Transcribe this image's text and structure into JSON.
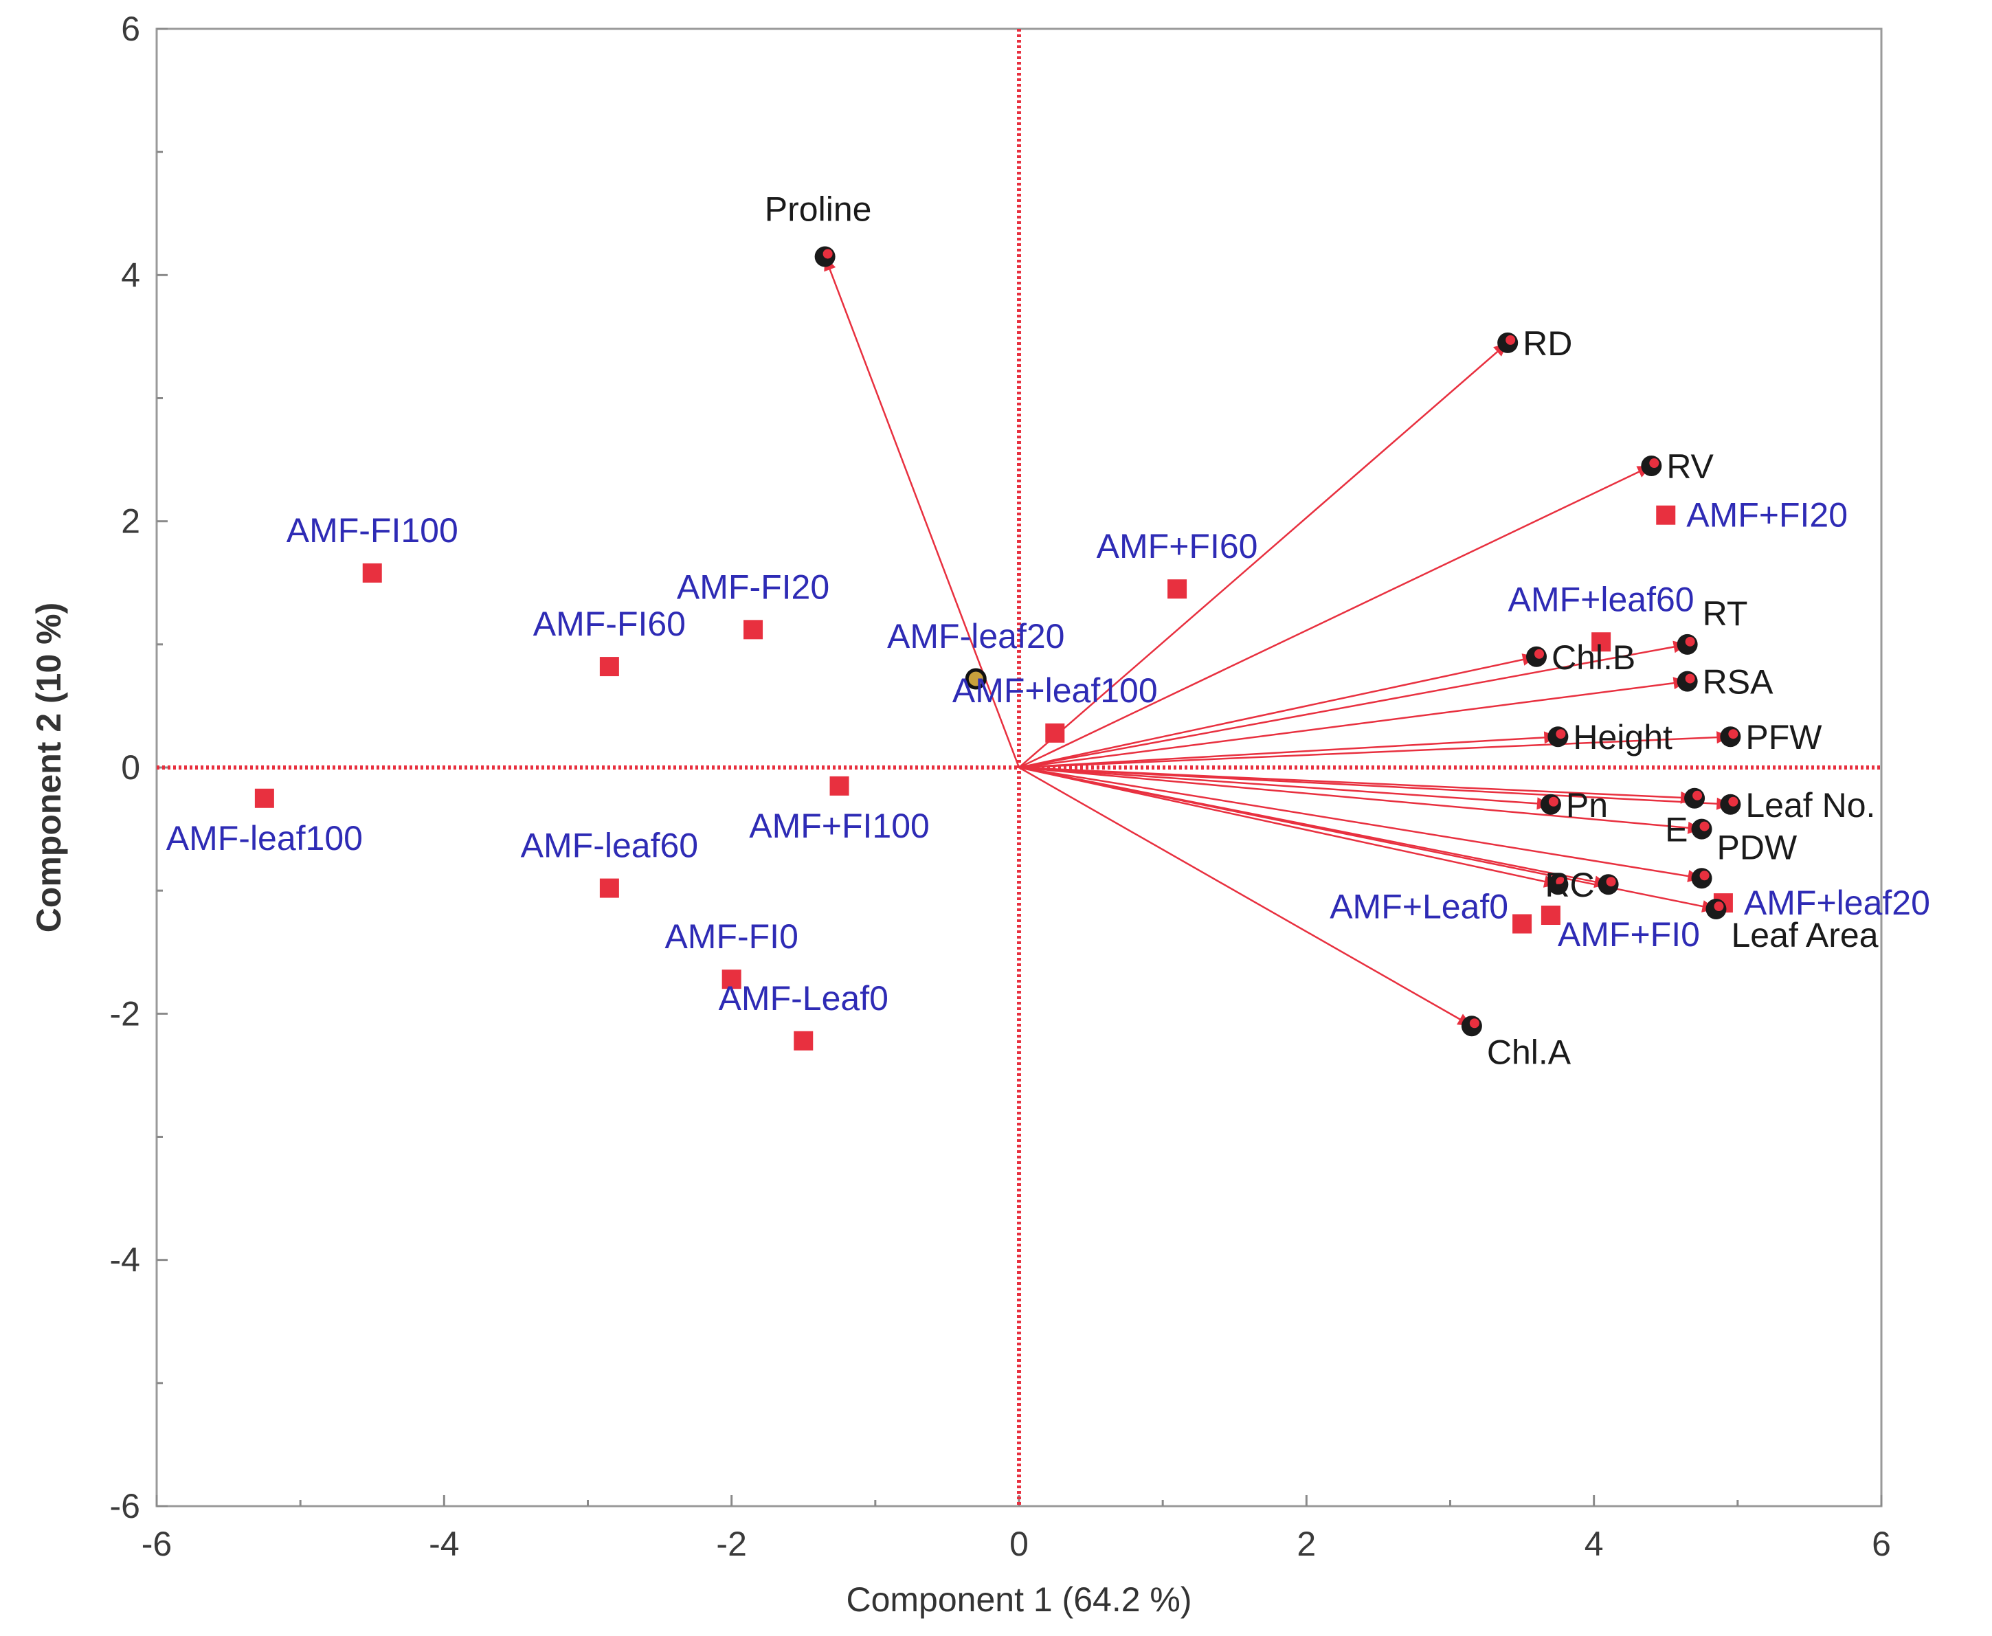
{
  "chart_data": {
    "type": "scatter",
    "subtype": "pca-biplot",
    "title": "",
    "xlabel": "Component 1  (64.2 %)",
    "ylabel": "Component 2  (10 %)",
    "xlim": [
      -6,
      6
    ],
    "ylim": [
      -6,
      6
    ],
    "xticks": [
      "-6",
      "-4",
      "-2",
      "0",
      "2",
      "4",
      "6"
    ],
    "yticks": [
      "-6",
      "-4",
      "-2",
      "0",
      "2",
      "4",
      "6"
    ],
    "grid": false,
    "colors": {
      "accent": "#e8303f",
      "marker_edge": "#111111",
      "obs_label": "#2e2bb5",
      "var_label": "#1a1a1a"
    },
    "loadings": [
      {
        "name": "Proline",
        "x": -1.35,
        "y": 4.15,
        "label_pos": "above"
      },
      {
        "name": "RD",
        "x": 3.4,
        "y": 3.45,
        "label_pos": "right"
      },
      {
        "name": "RV",
        "x": 4.4,
        "y": 2.45,
        "label_pos": "right"
      },
      {
        "name": "RT",
        "x": 4.65,
        "y": 1.0,
        "label_pos": "upper-right"
      },
      {
        "name": "Chl.B",
        "x": 3.6,
        "y": 0.9,
        "label_pos": "right"
      },
      {
        "name": "RSA",
        "x": 4.65,
        "y": 0.7,
        "label_pos": "right"
      },
      {
        "name": "Height",
        "x": 3.75,
        "y": 0.25,
        "label_pos": "right"
      },
      {
        "name": "PFW",
        "x": 4.95,
        "y": 0.25,
        "label_pos": "right"
      },
      {
        "name": "Leaf No.",
        "x": 4.95,
        "y": -0.3,
        "label_pos": "right"
      },
      {
        "name": "Pn",
        "x": 3.7,
        "y": -0.3,
        "label_pos": "right"
      },
      {
        "name": "E",
        "x": 4.75,
        "y": -0.5,
        "label_pos": "left"
      },
      {
        "name": "PDW",
        "x": 4.75,
        "y": -0.9,
        "label_pos": "upper-right"
      },
      {
        "name": "RC",
        "x": 4.1,
        "y": -0.95,
        "label_pos": "left"
      },
      {
        "name": "Leaf Area",
        "x": 4.85,
        "y": -1.15,
        "label_pos": "lower-right"
      },
      {
        "name": "Chl.A",
        "x": 3.15,
        "y": -2.1,
        "label_pos": "lower-right"
      }
    ],
    "extra_vector_points": [
      {
        "x": 4.7,
        "y": -0.25
      },
      {
        "x": 3.75,
        "y": -0.95
      }
    ],
    "scores": [
      {
        "name": "AMF-FI100",
        "x": -4.5,
        "y": 1.58,
        "label_pos": "above"
      },
      {
        "name": "AMF-FI20",
        "x": -1.85,
        "y": 1.12,
        "label_pos": "above"
      },
      {
        "name": "AMF-FI60",
        "x": -2.85,
        "y": 0.82,
        "label_pos": "above"
      },
      {
        "name": "AMF-leaf20",
        "x": -0.3,
        "y": 0.72,
        "label_pos": "above",
        "marker": "circle"
      },
      {
        "name": "AMF-leaf100",
        "x": -5.25,
        "y": -0.25,
        "label_pos": "below"
      },
      {
        "name": "AMF-leaf60",
        "x": -2.85,
        "y": -0.98,
        "label_pos": "above"
      },
      {
        "name": "AMF-FI0",
        "x": -2.0,
        "y": -1.72,
        "label_pos": "above"
      },
      {
        "name": "AMF-Leaf0",
        "x": -1.5,
        "y": -2.22,
        "label_pos": "above"
      },
      {
        "name": "AMF+FI100",
        "x": -1.25,
        "y": -0.15,
        "label_pos": "below"
      },
      {
        "name": "AMF+FI60",
        "x": 1.1,
        "y": 1.45,
        "label_pos": "above"
      },
      {
        "name": "AMF+leaf100",
        "x": 0.25,
        "y": 0.28,
        "label_pos": "above"
      },
      {
        "name": "AMF+leaf60",
        "x": 4.05,
        "y": 1.02,
        "label_pos": "above"
      },
      {
        "name": "AMF+FI20",
        "x": 4.5,
        "y": 2.05,
        "label_pos": "right"
      },
      {
        "name": "AMF+Leaf0",
        "x": 3.5,
        "y": -1.27,
        "label_pos": "left"
      },
      {
        "name": "AMF+FI0",
        "x": 3.7,
        "y": -1.2,
        "label_pos": "below-right"
      },
      {
        "name": "AMF+leaf20",
        "x": 4.9,
        "y": -1.1,
        "label_pos": "right"
      }
    ]
  }
}
